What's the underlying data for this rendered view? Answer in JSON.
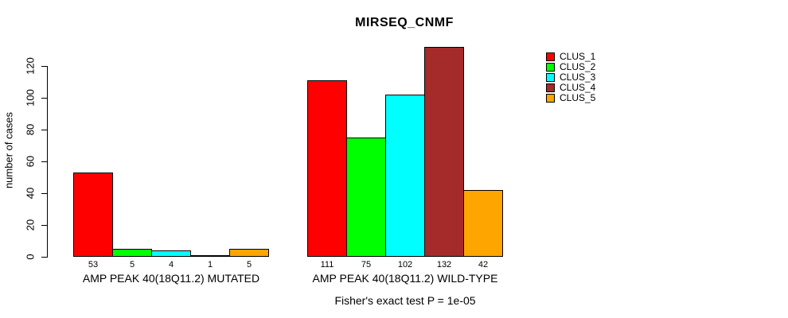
{
  "chart_data": {
    "type": "bar",
    "title": "MIRSEQ_CNMF",
    "ylabel": "number of cases",
    "annotation": "Fisher's exact test P = 1e-05",
    "yticks": [
      0,
      20,
      40,
      60,
      80,
      100,
      120
    ],
    "ylim": [
      0,
      135
    ],
    "grid": false,
    "legend_position": "right",
    "legend": [
      "CLUS_1",
      "CLUS_2",
      "CLUS_3",
      "CLUS_4",
      "CLUS_5"
    ],
    "series_colors": [
      "#FF0000",
      "#00FF00",
      "#00FFFF",
      "#A52A2A",
      "#FFA500"
    ],
    "groups": [
      {
        "label": "AMP PEAK 40(18Q11.2) MUTATED",
        "values": [
          53,
          5,
          4,
          1,
          5
        ]
      },
      {
        "label": "AMP PEAK 40(18Q11.2) WILD-TYPE",
        "values": [
          111,
          75,
          102,
          132,
          42
        ]
      }
    ],
    "axis_color": "#000000",
    "background_color": "#ffffff"
  }
}
